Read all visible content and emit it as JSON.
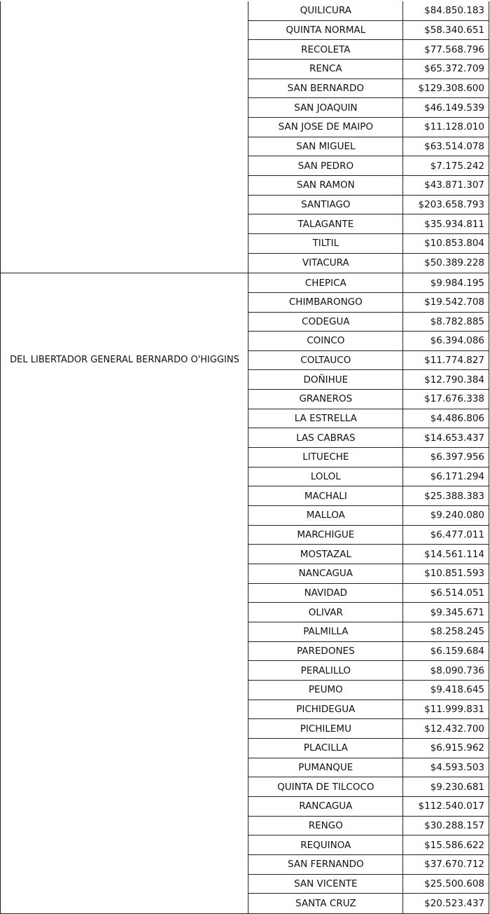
{
  "groups": [
    {
      "region": "",
      "rows": [
        {
          "comuna": "QUILICURA",
          "monto": "$84.850.183"
        },
        {
          "comuna": "QUINTA NORMAL",
          "monto": "$58.340.651"
        },
        {
          "comuna": "RECOLETA",
          "monto": "$77.568.796"
        },
        {
          "comuna": "RENCA",
          "monto": "$65.372.709"
        },
        {
          "comuna": "SAN BERNARDO",
          "monto": "$129.308.600"
        },
        {
          "comuna": "SAN JOAQUIN",
          "monto": "$46.149.539"
        },
        {
          "comuna": "SAN JOSE DE MAIPO",
          "monto": "$11.128.010"
        },
        {
          "comuna": "SAN MIGUEL",
          "monto": "$63.514.078"
        },
        {
          "comuna": "SAN PEDRO",
          "monto": "$7.175.242"
        },
        {
          "comuna": "SAN RAMON",
          "monto": "$43.871.307"
        },
        {
          "comuna": "SANTIAGO",
          "monto": "$203.658.793"
        },
        {
          "comuna": "TALAGANTE",
          "monto": "$35.934.811"
        },
        {
          "comuna": "TILTIL",
          "monto": "$10.853.804"
        },
        {
          "comuna": "VITACURA",
          "monto": "$50.389.228"
        }
      ]
    },
    {
      "region": "DEL LIBERTADOR GENERAL BERNARDO O'HIGGINS",
      "rows": [
        {
          "comuna": "CHEPICA",
          "monto": "$9.984.195"
        },
        {
          "comuna": "CHIMBARONGO",
          "monto": "$19.542.708"
        },
        {
          "comuna": "CODEGUA",
          "monto": "$8.782.885"
        },
        {
          "comuna": "COINCO",
          "monto": "$6.394.086"
        },
        {
          "comuna": "COLTAUCO",
          "monto": "$11.774.827"
        },
        {
          "comuna": "DOÑIHUE",
          "monto": "$12.790.384"
        },
        {
          "comuna": "GRANEROS",
          "monto": "$17.676.338"
        },
        {
          "comuna": "LA ESTRELLA",
          "monto": "$4.486.806"
        },
        {
          "comuna": "LAS CABRAS",
          "monto": "$14.653.437"
        },
        {
          "comuna": "LITUECHE",
          "monto": "$6.397.956"
        },
        {
          "comuna": "LOLOL",
          "monto": "$6.171.294"
        },
        {
          "comuna": "MACHALI",
          "monto": "$25.388.383"
        },
        {
          "comuna": "MALLOA",
          "monto": "$9.240.080"
        },
        {
          "comuna": "MARCHIGUE",
          "monto": "$6.477.011"
        },
        {
          "comuna": "MOSTAZAL",
          "monto": "$14.561.114"
        },
        {
          "comuna": "NANCAGUA",
          "monto": "$10.851.593"
        },
        {
          "comuna": "NAVIDAD",
          "monto": "$6.514.051"
        },
        {
          "comuna": "OLIVAR",
          "monto": "$9.345.671"
        },
        {
          "comuna": "PALMILLA",
          "monto": "$8.258.245"
        },
        {
          "comuna": "PAREDONES",
          "monto": "$6.159.684"
        },
        {
          "comuna": "PERALILLO",
          "monto": "$8.090.736"
        },
        {
          "comuna": "PEUMO",
          "monto": "$9.418.645"
        },
        {
          "comuna": "PICHIDEGUA",
          "monto": "$11.999.831"
        },
        {
          "comuna": "PICHILEMU",
          "monto": "$12.432.700"
        },
        {
          "comuna": "PLACILLA",
          "monto": "$6.915.962"
        },
        {
          "comuna": "PUMANQUE",
          "monto": "$4.593.503"
        },
        {
          "comuna": "QUINTA DE TILCOCO",
          "monto": "$9.230.681"
        },
        {
          "comuna": "RANCAGUA",
          "monto": "$112.540.017"
        },
        {
          "comuna": "RENGO",
          "monto": "$30.288.157"
        },
        {
          "comuna": "REQUINOA",
          "monto": "$15.586.622"
        },
        {
          "comuna": "SAN FERNANDO",
          "monto": "$37.670.712"
        },
        {
          "comuna": "SAN VICENTE",
          "monto": "$25.500.608"
        },
        {
          "comuna": "SANTA CRUZ",
          "monto": "$20.523.437"
        }
      ]
    }
  ]
}
